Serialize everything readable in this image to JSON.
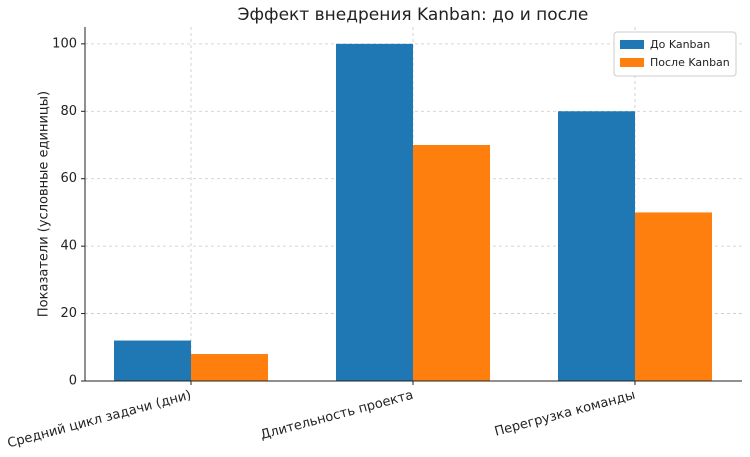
{
  "chart_data": {
    "type": "bar",
    "title": "Эффект внедрения Kanban: до и после",
    "y_label": "Показатели (условные единицы)",
    "categories": [
      "Средний цикл задачи (дни)",
      "Длительность проекта",
      "Перегрузка команды"
    ],
    "series": [
      {
        "name": "До Kanban",
        "color": "#1f77b4",
        "values": [
          12,
          100,
          80
        ]
      },
      {
        "name": "После Kanban",
        "color": "#ff7f0e",
        "values": [
          8,
          70,
          50
        ]
      }
    ],
    "ylim": [
      0,
      105
    ],
    "yticks": [
      0,
      20,
      40,
      60,
      80,
      100
    ],
    "grid": true,
    "legend": "upper right"
  }
}
